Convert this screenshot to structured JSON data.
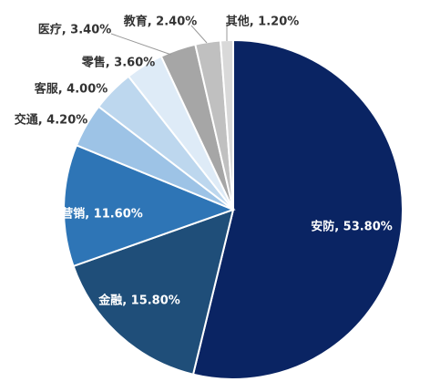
{
  "chart_data": {
    "type": "pie",
    "title": "",
    "categories": [
      "安防",
      "金融",
      "营销",
      "交通",
      "客服",
      "零售",
      "医疗",
      "教育",
      "其他"
    ],
    "values": [
      53.8,
      15.8,
      11.6,
      4.2,
      4.0,
      3.6,
      3.4,
      2.4,
      1.2
    ],
    "unit": "%",
    "data_labels": [
      "安防, 53.80%",
      "金融, 15.80%",
      "营销, 11.60%",
      "交通, 4.20%",
      "客服, 4.00%",
      "零售, 3.60%",
      "医疗, 3.40%",
      "教育, 2.40%",
      "其他, 1.20%"
    ],
    "colors": [
      "#0a2463",
      "#1f4e79",
      "#2e75b6",
      "#9dc3e6",
      "#bdd7ee",
      "#deebf7",
      "#a6a6a6",
      "#c0c0c0",
      "#d9d9d9"
    ],
    "label_placement": [
      "inside",
      "inside",
      "inside",
      "outside",
      "outside",
      "outside",
      "outside",
      "outside",
      "outside"
    ],
    "start_angle": "12 o'clock",
    "direction": "clockwise",
    "legend": "none"
  }
}
